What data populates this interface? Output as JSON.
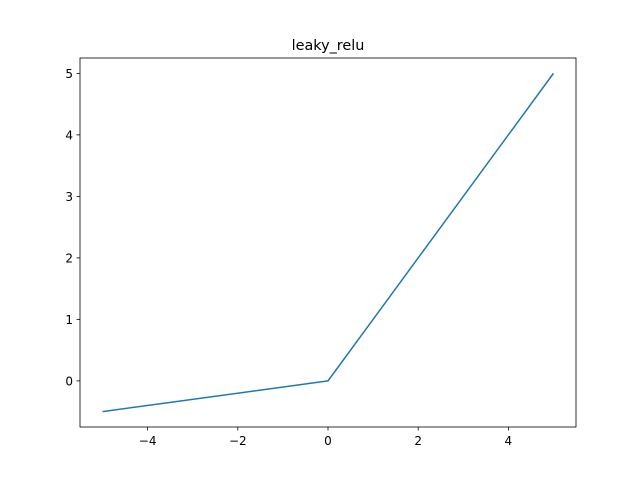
{
  "chart_data": {
    "type": "line",
    "title": "leaky_relu",
    "xlabel": "",
    "ylabel": "",
    "xlim": [
      -5.5,
      5.5
    ],
    "ylim": [
      -0.75,
      5.25
    ],
    "xticks": [
      -4,
      -2,
      0,
      2,
      4
    ],
    "xtick_labels": [
      "−4",
      "−2",
      "0",
      "2",
      "4"
    ],
    "yticks": [
      0,
      1,
      2,
      3,
      4,
      5
    ],
    "ytick_labels": [
      "0",
      "1",
      "2",
      "3",
      "4",
      "5"
    ],
    "grid": false,
    "legend": "none",
    "series": [
      {
        "color": "#1f77b4",
        "x": [
          -5,
          0,
          5
        ],
        "y": [
          -0.5,
          0,
          5
        ]
      }
    ]
  }
}
